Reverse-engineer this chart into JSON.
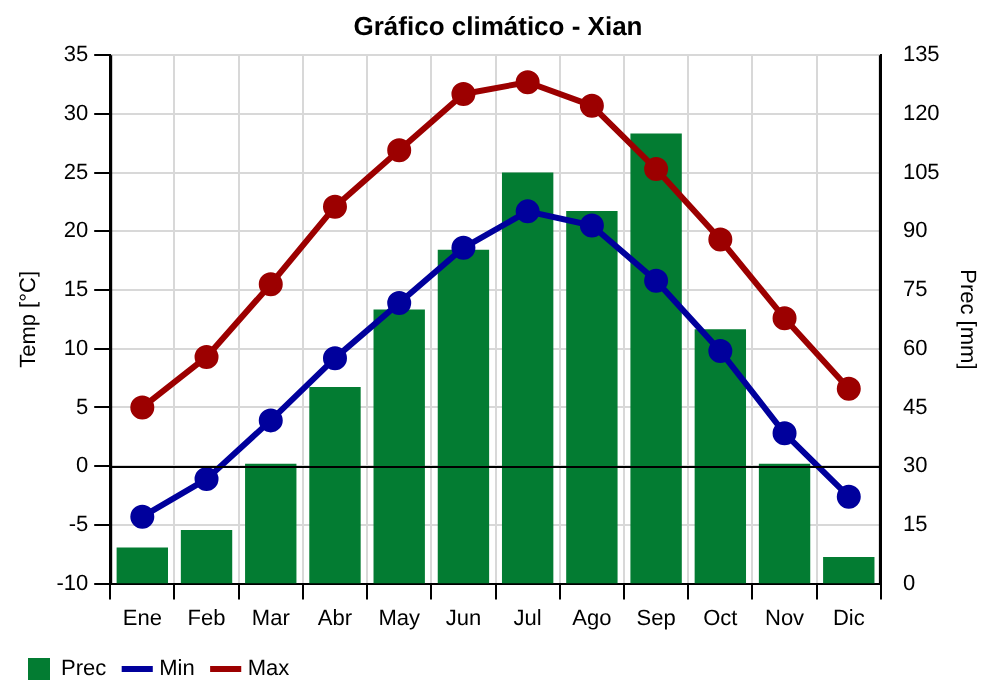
{
  "chart_data": {
    "type": "bar",
    "title": "Gráfico climático - Xian",
    "ylabel": "Temp [°C]",
    "y2label": "Prec [mm]",
    "categories": [
      "Ene",
      "Feb",
      "Mar",
      "Abr",
      "May",
      "Jun",
      "Jul",
      "Ago",
      "Sep",
      "Oct",
      "Nov",
      "Dic"
    ],
    "series": [
      {
        "name": "Prec",
        "axis": "y2",
        "color": "#037c32",
        "values": [
          9.2,
          13.7,
          30.6,
          50.2,
          70,
          85.3,
          105,
          95.2,
          115,
          65,
          30.6,
          6.8
        ]
      },
      {
        "name": "Min",
        "type": "line",
        "color": "#00009c",
        "values": [
          -4.3,
          -1.1,
          3.9,
          9.2,
          13.9,
          18.6,
          21.7,
          20.5,
          15.8,
          9.8,
          2.8,
          -2.6
        ]
      },
      {
        "name": "Max",
        "type": "line",
        "color": "#9c0000",
        "values": [
          5,
          9.3,
          15.5,
          22.1,
          26.9,
          31.7,
          32.7,
          30.7,
          25.3,
          19.3,
          12.6,
          6.6
        ]
      }
    ],
    "ylim": [
      -10,
      35
    ],
    "yticks": [
      -10,
      -5,
      0,
      5,
      10,
      15,
      20,
      25,
      30,
      35
    ],
    "y2lim": [
      0,
      135
    ],
    "y2ticks": [
      0,
      15,
      30,
      45,
      60,
      75,
      90,
      105,
      120,
      135
    ],
    "ref_lines": [
      {
        "axis": "y",
        "value": 0,
        "color": "#000000"
      }
    ],
    "grid": true,
    "legend": "bottom left",
    "marker": "circle",
    "line_style": "solid"
  }
}
